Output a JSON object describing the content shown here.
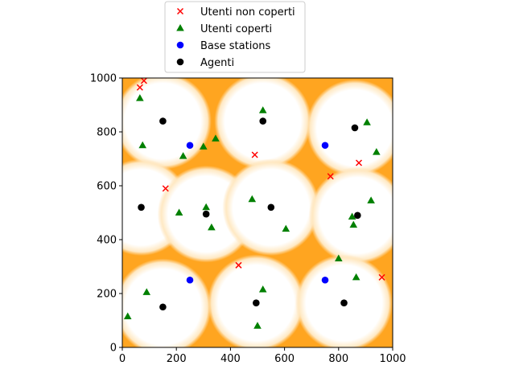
{
  "chart_data": {
    "type": "scatter",
    "title": "",
    "xlabel": "",
    "ylabel": "",
    "xlim": [
      0,
      1000
    ],
    "ylim": [
      0,
      1000
    ],
    "x_ticks": [
      "0",
      "200",
      "400",
      "600",
      "800",
      "1000"
    ],
    "y_ticks": [
      "0",
      "200",
      "400",
      "600",
      "800",
      "1000"
    ],
    "grid": false,
    "legend_position": "top-center-outside",
    "background_color": "#ffa520",
    "coverage_color": "#ffffff",
    "coverage_radius": 180,
    "series": [
      {
        "name": "Utenti non coperti",
        "marker": "x",
        "color": "#ff0000",
        "points": [
          [
            65,
            965
          ],
          [
            80,
            990
          ],
          [
            490,
            715
          ],
          [
            770,
            635
          ],
          [
            875,
            685
          ],
          [
            160,
            590
          ],
          [
            430,
            305
          ],
          [
            960,
            260
          ]
        ]
      },
      {
        "name": "Utenti coperti",
        "marker": "triangle",
        "color": "#008000",
        "points": [
          [
            65,
            925
          ],
          [
            75,
            750
          ],
          [
            225,
            710
          ],
          [
            300,
            745
          ],
          [
            345,
            775
          ],
          [
            520,
            880
          ],
          [
            905,
            835
          ],
          [
            940,
            725
          ],
          [
            310,
            520
          ],
          [
            330,
            445
          ],
          [
            210,
            500
          ],
          [
            480,
            550
          ],
          [
            605,
            440
          ],
          [
            920,
            545
          ],
          [
            850,
            485
          ],
          [
            855,
            455
          ],
          [
            20,
            115
          ],
          [
            90,
            205
          ],
          [
            520,
            215
          ],
          [
            500,
            80
          ],
          [
            800,
            330
          ],
          [
            865,
            260
          ]
        ]
      },
      {
        "name": "Base stations",
        "marker": "circle",
        "color": "#0000ff",
        "points": [
          [
            250,
            750
          ],
          [
            750,
            750
          ],
          [
            250,
            250
          ],
          [
            750,
            250
          ]
        ]
      },
      {
        "name": "Agenti",
        "marker": "circle",
        "color": "#000000",
        "points": [
          [
            150,
            840
          ],
          [
            520,
            840
          ],
          [
            860,
            815
          ],
          [
            70,
            520
          ],
          [
            310,
            495
          ],
          [
            550,
            520
          ],
          [
            870,
            490
          ],
          [
            150,
            150
          ],
          [
            495,
            165
          ],
          [
            820,
            165
          ]
        ]
      }
    ]
  }
}
